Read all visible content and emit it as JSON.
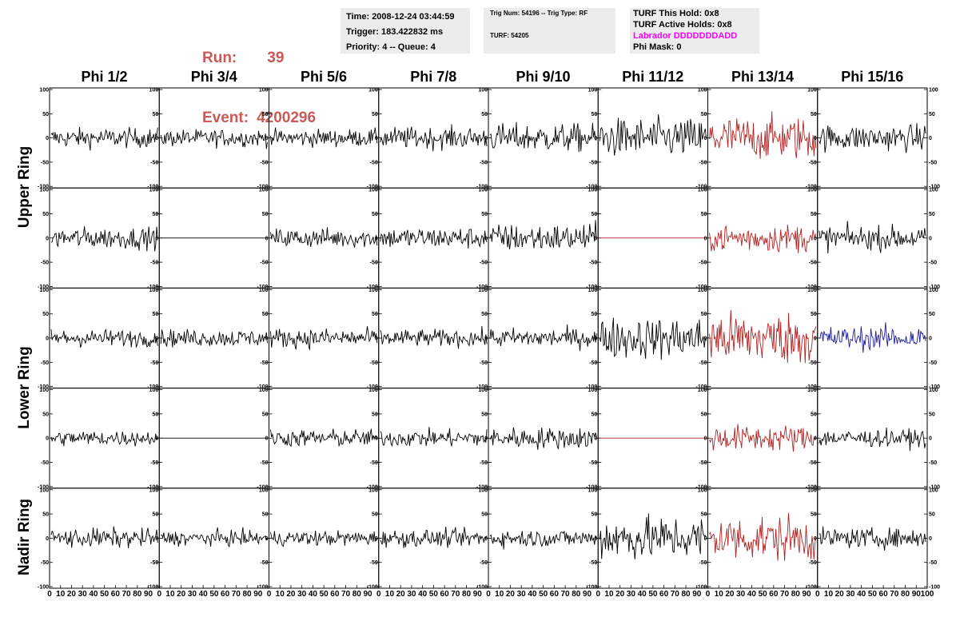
{
  "run": {
    "label": "Run:",
    "value": "39"
  },
  "event": {
    "label": "Event:",
    "value": "4200296"
  },
  "info_time": {
    "time": "Time: 2008-12-24 03:44:59",
    "trigger": "Trigger: 183.422832 ms",
    "priority": "Priority: 4 -- Queue: 4"
  },
  "info_trig": {
    "trig": "Trig Num: 54196 -- Trig Type: RF",
    "turf": "TURF: 54205"
  },
  "info_turf": {
    "hold": "TURF This Hold: 0x8",
    "active": "TURF Active Holds: 0x8",
    "labrador": "Labrador DDDDDDDADD",
    "phimask": "Phi Mask: 0"
  },
  "phi_headers": [
    "Phi 1/2",
    "Phi 3/4",
    "Phi 5/6",
    "Phi 7/8",
    "Phi 9/10",
    "Phi 11/12",
    "Phi 13/14",
    "Phi 15/16"
  ],
  "ring_labels": [
    "Upper Ring",
    "Lower Ring",
    "Nadir Ring"
  ],
  "colors": {
    "normal": "#000000",
    "triggered": "#b22222",
    "blue": "#1c1c9c",
    "run_text": "#c95a55",
    "labrador": "#ff00ff"
  },
  "chart_data": {
    "type": "line",
    "rows": 5,
    "cols": 8,
    "xlim": [
      0,
      100
    ],
    "ylim": [
      -100,
      100
    ],
    "y_ticks": [
      -100,
      -50,
      0,
      50,
      100
    ],
    "x_tick_labels": [
      "0",
      "10",
      "20",
      "30",
      "40",
      "50",
      "60",
      "70",
      "80",
      "90",
      "100"
    ],
    "panels": [
      [
        {
          "amp": 18,
          "color": "normal"
        },
        {
          "amp": 16,
          "color": "normal"
        },
        {
          "amp": 16,
          "color": "normal"
        },
        {
          "amp": 20,
          "color": "normal"
        },
        {
          "amp": 26,
          "color": "normal"
        },
        {
          "amp": 36,
          "color": "normal"
        },
        {
          "amp": 40,
          "color": "triggered"
        },
        {
          "amp": 24,
          "color": "normal"
        }
      ],
      [
        {
          "amp": 20,
          "color": "normal"
        },
        {
          "amp": 0,
          "color": "normal"
        },
        {
          "amp": 18,
          "color": "normal"
        },
        {
          "amp": 20,
          "color": "normal"
        },
        {
          "amp": 26,
          "color": "normal"
        },
        {
          "amp": 0,
          "color": "triggered"
        },
        {
          "amp": 26,
          "color": "triggered"
        },
        {
          "amp": 22,
          "color": "normal"
        }
      ],
      [
        {
          "amp": 16,
          "color": "normal"
        },
        {
          "amp": 16,
          "color": "normal"
        },
        {
          "amp": 18,
          "color": "normal"
        },
        {
          "amp": 16,
          "color": "normal"
        },
        {
          "amp": 18,
          "color": "normal"
        },
        {
          "amp": 38,
          "color": "normal"
        },
        {
          "amp": 48,
          "color": "triggered"
        },
        {
          "amp": 22,
          "color": "blue"
        }
      ],
      [
        {
          "amp": 14,
          "color": "normal"
        },
        {
          "amp": 0,
          "color": "normal"
        },
        {
          "amp": 16,
          "color": "normal"
        },
        {
          "amp": 16,
          "color": "normal"
        },
        {
          "amp": 20,
          "color": "normal"
        },
        {
          "amp": 0,
          "color": "triggered"
        },
        {
          "amp": 24,
          "color": "triggered"
        },
        {
          "amp": 16,
          "color": "normal"
        }
      ],
      [
        {
          "amp": 18,
          "color": "normal"
        },
        {
          "amp": 14,
          "color": "normal"
        },
        {
          "amp": 14,
          "color": "normal"
        },
        {
          "amp": 16,
          "color": "normal"
        },
        {
          "amp": 16,
          "color": "normal"
        },
        {
          "amp": 40,
          "color": "normal"
        },
        {
          "amp": 42,
          "color": "triggered"
        },
        {
          "amp": 18,
          "color": "normal"
        }
      ]
    ]
  }
}
